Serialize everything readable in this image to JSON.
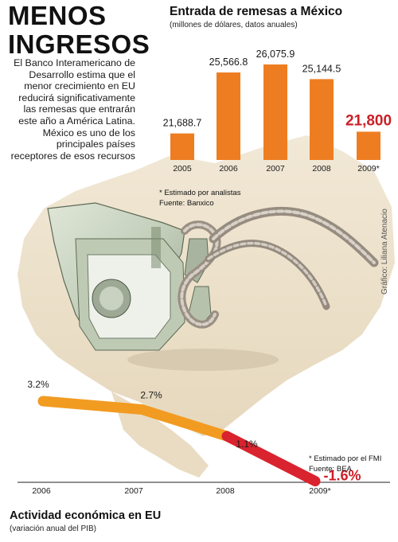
{
  "headline": {
    "line1": "MENOS",
    "line2": "INGRESOS"
  },
  "intro": "El Banco Interamericano de Desarrollo estima que el menor crecimiento en EU reducirá significativamente las remesas que entrarán este año a América Latina. México es uno de los principales países receptores de esos recursos",
  "credit": "Gráfico: Liliana Atenacio",
  "colors": {
    "bar": "#ee7d22",
    "line_past": "#f29b21",
    "line_forecast": "#d9232e",
    "highlight": "#cc1e25"
  },
  "chart_data": [
    {
      "type": "bar",
      "title": "Entrada de remesas a México",
      "subtitle": "(millones de dólares, datos anuales)",
      "categories": [
        "2005",
        "2006",
        "2007",
        "2008",
        "2009*"
      ],
      "values": [
        21688.7,
        25566.8,
        26075.9,
        25144.5,
        21800
      ],
      "value_labels": [
        "21,688.7",
        "25,566.8",
        "26,075.9",
        "25,144.5",
        "21,800"
      ],
      "highlight_index": 4,
      "note": "* Estimado por analistas",
      "source": "Fuente: Banxico"
    },
    {
      "type": "line",
      "title": "Actividad económica en EU",
      "subtitle": "(variación anual del PIB)",
      "categories": [
        "2006",
        "2007",
        "2008",
        "2009*"
      ],
      "values": [
        3.2,
        2.7,
        1.1,
        -1.6
      ],
      "value_labels": [
        "3.2%",
        "2.7%",
        "1.1%",
        "-1.6%"
      ],
      "forecast_index": 3,
      "note": "* Estimado por el FMI",
      "source": "Fuente: BEA"
    }
  ]
}
